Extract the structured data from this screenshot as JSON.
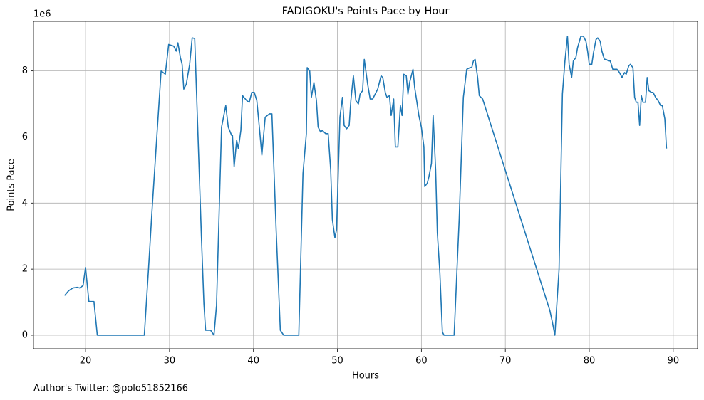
{
  "chart_data": {
    "type": "line",
    "title": "FADIGOKU's Points Pace by Hour",
    "xlabel": "Hours",
    "ylabel": "Points Pace",
    "y_offset_label": "1e6",
    "footnote": "Author's Twitter: @polo51852166",
    "xlim": [
      13.8,
      92.9
    ],
    "ylim": [
      -0.41,
      9.5
    ],
    "xticks": [
      20,
      30,
      40,
      50,
      60,
      70,
      80,
      90
    ],
    "yticks": [
      0,
      2,
      4,
      6,
      8
    ],
    "grid": true,
    "series": [
      {
        "color": "#1f77b4",
        "x": [
          17.5,
          18.0,
          18.5,
          19.0,
          19.3,
          19.7,
          20.0,
          20.4,
          21.0,
          21.4,
          27.0,
          27.5,
          27.9,
          29.0,
          29.5,
          29.9,
          30.5,
          30.8,
          31.0,
          31.3,
          31.5,
          31.7,
          32.0,
          32.4,
          32.7,
          33.0,
          33.4,
          33.8,
          34.1,
          34.3,
          34.9,
          35.3,
          35.6,
          36.2,
          36.7,
          37.0,
          37.4,
          37.5,
          37.7,
          38.0,
          38.2,
          38.5,
          38.7,
          39.2,
          39.5,
          39.8,
          40.1,
          40.4,
          40.7,
          41.0,
          41.4,
          41.9,
          42.2,
          42.7,
          43.2,
          43.6,
          45.4,
          45.9,
          46.3,
          46.4,
          46.7,
          46.9,
          47.2,
          47.5,
          47.7,
          48.0,
          48.2,
          48.6,
          48.9,
          49.2,
          49.4,
          49.7,
          49.9,
          50.3,
          50.6,
          50.8,
          51.1,
          51.4,
          51.6,
          51.9,
          52.2,
          52.5,
          52.7,
          53.0,
          53.2,
          53.6,
          53.9,
          54.2,
          54.5,
          54.8,
          55.2,
          55.4,
          55.7,
          55.9,
          56.2,
          56.4,
          56.7,
          56.9,
          57.2,
          57.5,
          57.7,
          57.9,
          58.2,
          58.4,
          58.6,
          59.0,
          59.2,
          59.5,
          59.7,
          60.0,
          60.3,
          60.4,
          60.7,
          60.9,
          61.2,
          61.4,
          61.7,
          61.9,
          62.2,
          62.5,
          62.7,
          63.9,
          64.5,
          65.0,
          65.4,
          65.8,
          66.0,
          66.2,
          66.4,
          66.7,
          66.9,
          67.3,
          75.3,
          75.6,
          75.9,
          76.4,
          76.8,
          77.1,
          77.4,
          77.6,
          77.9,
          78.1,
          78.4,
          78.6,
          79.0,
          79.3,
          79.6,
          79.8,
          80.0,
          80.3,
          80.5,
          80.8,
          81.0,
          81.3,
          81.5,
          81.8,
          82.0,
          82.3,
          82.5,
          82.8,
          83.3,
          83.6,
          83.9,
          84.2,
          84.4,
          84.7,
          84.9,
          85.2,
          85.4,
          85.6,
          85.8,
          86.0,
          86.2,
          86.4,
          86.7,
          86.9,
          87.1,
          87.4,
          87.6,
          87.9,
          88.2,
          88.5,
          88.7,
          89.0,
          89.2
        ],
        "values": [
          1.2,
          1.35,
          1.43,
          1.45,
          1.43,
          1.5,
          2.05,
          1.02,
          1.02,
          0,
          0,
          2.0,
          3.7,
          8.0,
          7.9,
          8.8,
          8.75,
          8.6,
          8.85,
          8.4,
          8.2,
          7.45,
          7.6,
          8.2,
          9.0,
          8.98,
          6.0,
          3.0,
          0.95,
          0.15,
          0.15,
          0,
          0.9,
          6.3,
          6.95,
          6.3,
          6.05,
          6.05,
          5.1,
          5.9,
          5.65,
          6.2,
          7.25,
          7.1,
          7.05,
          7.35,
          7.35,
          7.1,
          6.3,
          5.45,
          6.6,
          6.7,
          6.7,
          3.2,
          0.15,
          0,
          0,
          4.9,
          6.1,
          8.1,
          8.0,
          7.2,
          7.65,
          7.1,
          6.3,
          6.15,
          6.2,
          6.1,
          6.1,
          5.0,
          3.5,
          2.95,
          3.2,
          6.6,
          7.2,
          6.35,
          6.25,
          6.35,
          7.1,
          7.85,
          7.1,
          7.0,
          7.3,
          7.4,
          8.35,
          7.6,
          7.15,
          7.15,
          7.3,
          7.45,
          7.85,
          7.8,
          7.35,
          7.2,
          7.25,
          6.65,
          7.15,
          5.7,
          5.7,
          6.95,
          6.65,
          7.9,
          7.85,
          7.3,
          7.65,
          8.05,
          7.5,
          7.0,
          6.65,
          6.3,
          5.7,
          4.5,
          4.6,
          4.8,
          5.2,
          6.65,
          5.0,
          3.1,
          1.9,
          0.1,
          0,
          0,
          3.5,
          7.2,
          8.05,
          8.1,
          8.1,
          8.3,
          8.35,
          7.8,
          7.25,
          7.15,
          0.75,
          0.4,
          0,
          2.0,
          7.3,
          8.3,
          9.05,
          8.2,
          7.8,
          8.3,
          8.4,
          8.7,
          9.05,
          9.05,
          8.9,
          8.6,
          8.2,
          8.2,
          8.55,
          8.95,
          9.0,
          8.9,
          8.6,
          8.35,
          8.35,
          8.3,
          8.3,
          8.05,
          8.05,
          7.95,
          7.8,
          7.95,
          7.9,
          8.15,
          8.2,
          8.1,
          7.2,
          7.05,
          7.05,
          6.35,
          7.25,
          7.05,
          7.05,
          7.8,
          7.4,
          7.35,
          7.35,
          7.2,
          7.1,
          6.95,
          6.95,
          6.55,
          5.65
        ]
      }
    ]
  }
}
